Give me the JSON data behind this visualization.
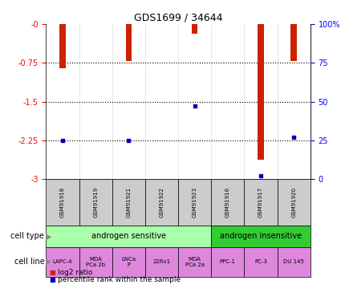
{
  "title": "GDS1699 / 34644",
  "samples": [
    "GSM91918",
    "GSM91919",
    "GSM91921",
    "GSM91922",
    "GSM91923",
    "GSM91916",
    "GSM91917",
    "GSM91920"
  ],
  "log2_ratio": [
    -0.85,
    0.0,
    -0.72,
    0.0,
    -0.18,
    0.0,
    -2.62,
    -0.72
  ],
  "percentile_rank": [
    25,
    null,
    25,
    null,
    47,
    null,
    2,
    27
  ],
  "ylim_left": [
    -3,
    0
  ],
  "yticks_left": [
    -3,
    -2.25,
    -1.5,
    -0.75,
    0
  ],
  "yticks_left_labels": [
    "-3",
    "-2.25",
    "-1.5",
    "-0.75",
    "-0"
  ],
  "yticks_right": [
    0,
    25,
    50,
    75,
    100
  ],
  "yright_labels": [
    "0",
    "25",
    "50",
    "75",
    "100%"
  ],
  "cell_type_groups": [
    {
      "label": "androgen sensitive",
      "indices": [
        0,
        1,
        2,
        3,
        4
      ],
      "color": "#aaffaa"
    },
    {
      "label": "androgen insensitive",
      "indices": [
        5,
        6,
        7
      ],
      "color": "#33cc33"
    }
  ],
  "cell_line_labels": [
    "LAPC-4",
    "MDA\nPCa 2b",
    "LNCa\nP",
    "22Rv1",
    "MDA\nPCa 2a",
    "PPC-1",
    "PC-3",
    "DU 145"
  ],
  "cell_line_color": "#dd88dd",
  "sample_bg_color": "#cccccc",
  "bar_color": "#cc2200",
  "percentile_color": "#0000bb",
  "bar_width": 0.18,
  "legend_red": "log2 ratio",
  "legend_blue": "percentile rank within the sample",
  "grid_ticks": [
    -0.75,
    -1.5,
    -2.25
  ]
}
